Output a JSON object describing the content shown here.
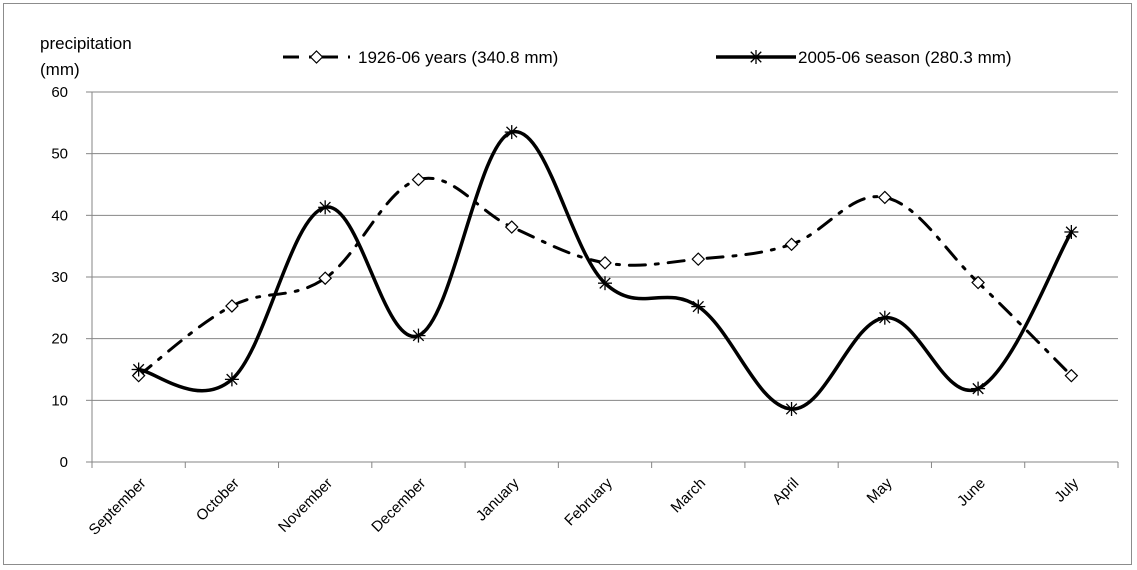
{
  "chart_data": {
    "type": "line",
    "ylabel_line1": "precipitation",
    "ylabel_line2": "(mm)",
    "categories": [
      "September",
      "October",
      "November",
      "December",
      "January",
      "February",
      "March",
      "April",
      "May",
      "June",
      "July"
    ],
    "ylim": [
      0,
      60
    ],
    "yticks": [
      0,
      10,
      20,
      30,
      40,
      50,
      60
    ],
    "grid": "horizontal",
    "legend_position": "top",
    "series": [
      {
        "name": "1926-06 years (340.8 mm)",
        "style": "dash-dot",
        "marker": "diamond",
        "color": "#000000",
        "values": [
          14,
          25.3,
          29.8,
          45.8,
          38.1,
          32.3,
          32.9,
          35.3,
          42.9,
          29.1,
          14
        ]
      },
      {
        "name": "2005-06 season (280.3 mm)",
        "style": "solid",
        "marker": "asterisk",
        "color": "#000000",
        "values": [
          15,
          13.4,
          41.3,
          20.5,
          53.5,
          29,
          25.2,
          8.6,
          23.4,
          11.9,
          37.3
        ]
      }
    ]
  }
}
